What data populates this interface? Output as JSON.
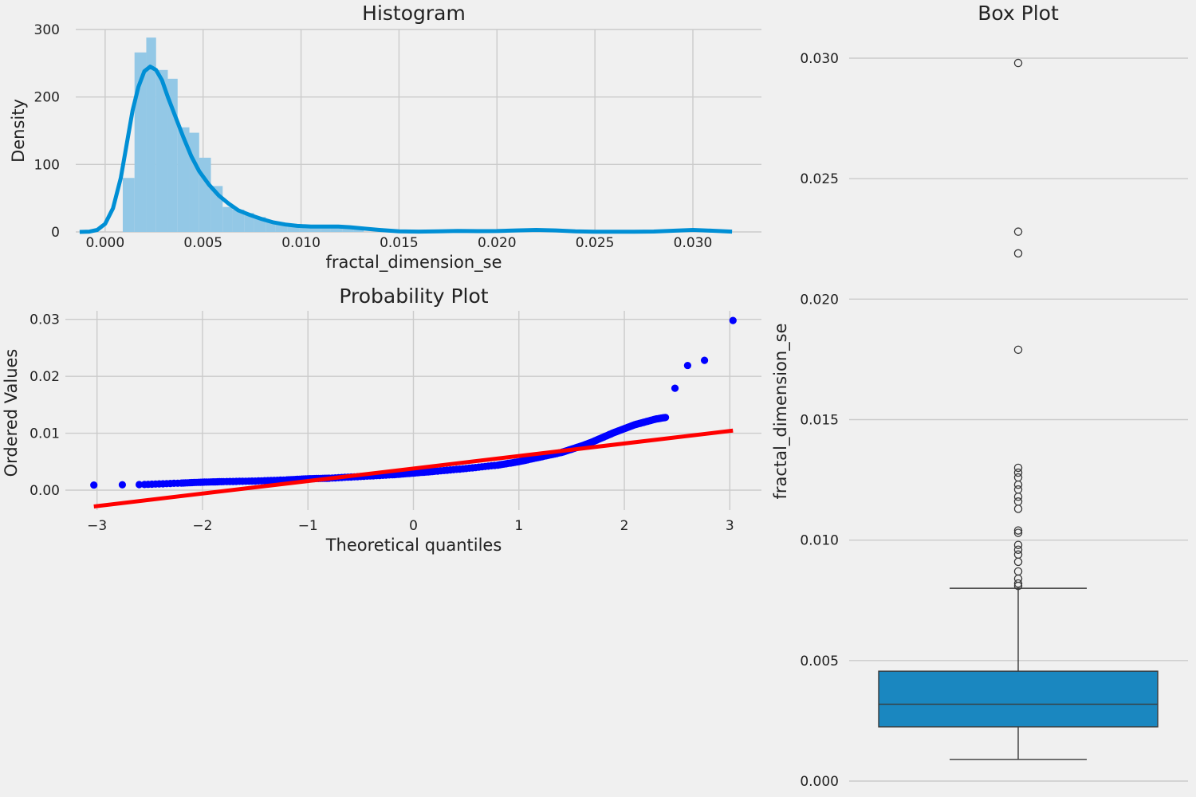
{
  "chart_data": [
    {
      "type": "bar",
      "title": "Histogram",
      "xlabel": "fractal_dimension_se",
      "ylabel": "Density",
      "xlim": [
        -0.0015,
        0.0335
      ],
      "ylim": [
        0,
        300
      ],
      "xticks": [
        0.0,
        0.005,
        0.01,
        0.015,
        0.02,
        0.025,
        0.03
      ],
      "xtick_labels": [
        "0.000",
        "0.005",
        "0.010",
        "0.015",
        "0.020",
        "0.025",
        "0.030"
      ],
      "yticks": [
        0,
        100,
        200,
        300
      ],
      "ytick_labels": [
        "0",
        "100",
        "200",
        "300"
      ],
      "grid": true,
      "bar_color": "#93c8e6",
      "kde_color": "#008fd5",
      "bins": [
        {
          "x0": 0.0009,
          "x1": 0.0015,
          "density": 80
        },
        {
          "x0": 0.0015,
          "x1": 0.0021,
          "density": 266
        },
        {
          "x0": 0.0021,
          "x1": 0.0026,
          "density": 288
        },
        {
          "x0": 0.0026,
          "x1": 0.0032,
          "density": 240
        },
        {
          "x0": 0.0032,
          "x1": 0.0037,
          "density": 227
        },
        {
          "x0": 0.0037,
          "x1": 0.0043,
          "density": 155
        },
        {
          "x0": 0.0043,
          "x1": 0.0048,
          "density": 147
        },
        {
          "x0": 0.0048,
          "x1": 0.0054,
          "density": 110
        },
        {
          "x0": 0.0054,
          "x1": 0.006,
          "density": 68
        },
        {
          "x0": 0.006,
          "x1": 0.0065,
          "density": 37
        },
        {
          "x0": 0.0065,
          "x1": 0.0071,
          "density": 33
        },
        {
          "x0": 0.0071,
          "x1": 0.0076,
          "density": 28
        },
        {
          "x0": 0.0076,
          "x1": 0.0082,
          "density": 22
        },
        {
          "x0": 0.0082,
          "x1": 0.0087,
          "density": 15
        },
        {
          "x0": 0.0087,
          "x1": 0.0093,
          "density": 12
        },
        {
          "x0": 0.0093,
          "x1": 0.0099,
          "density": 10
        },
        {
          "x0": 0.0099,
          "x1": 0.0104,
          "density": 8
        },
        {
          "x0": 0.0104,
          "x1": 0.011,
          "density": 7
        },
        {
          "x0": 0.011,
          "x1": 0.0115,
          "density": 8
        },
        {
          "x0": 0.0115,
          "x1": 0.0121,
          "density": 9
        },
        {
          "x0": 0.0121,
          "x1": 0.0127,
          "density": 9
        },
        {
          "x0": 0.0127,
          "x1": 0.0132,
          "density": 4
        },
        {
          "x0": 0.0177,
          "x1": 0.0182,
          "density": 2
        },
        {
          "x0": 0.0216,
          "x1": 0.0221,
          "density": 2
        },
        {
          "x0": 0.0227,
          "x1": 0.0232,
          "density": 2
        },
        {
          "x0": 0.0294,
          "x1": 0.03,
          "density": 2
        }
      ],
      "kde": {
        "x": [
          -0.0013,
          -0.0008,
          -0.0004,
          0.0,
          0.0004,
          0.0008,
          0.0011,
          0.0014,
          0.0017,
          0.002,
          0.0023,
          0.0026,
          0.0029,
          0.0032,
          0.0036,
          0.004,
          0.0044,
          0.0048,
          0.0053,
          0.0058,
          0.0063,
          0.0068,
          0.0074,
          0.008,
          0.0086,
          0.0092,
          0.0098,
          0.0105,
          0.0112,
          0.0119,
          0.0125,
          0.0132,
          0.014,
          0.015,
          0.016,
          0.017,
          0.018,
          0.019,
          0.02,
          0.021,
          0.022,
          0.023,
          0.024,
          0.025,
          0.026,
          0.027,
          0.028,
          0.029,
          0.03,
          0.031,
          0.032
        ],
        "y": [
          0,
          0.5,
          3,
          12,
          35,
          80,
          130,
          180,
          215,
          238,
          245,
          240,
          225,
          200,
          170,
          140,
          112,
          90,
          70,
          54,
          42,
          32,
          25,
          19,
          14,
          11,
          9,
          8,
          8,
          8,
          7,
          5,
          3,
          1,
          0.5,
          0.8,
          1.5,
          1.2,
          1.3,
          2.2,
          3,
          2.2,
          1,
          0.4,
          0.3,
          0.3,
          0.6,
          1.8,
          3,
          1.8,
          0.5
        ]
      }
    },
    {
      "type": "scatter",
      "title": "Probability Plot",
      "xlabel": "Theoretical quantiles",
      "ylabel": "Ordered Values",
      "xlim": [
        -3.3,
        3.3
      ],
      "ylim": [
        -0.0035,
        0.0315
      ],
      "xticks": [
        -3,
        -2,
        -1,
        0,
        1,
        2,
        3
      ],
      "xtick_labels": [
        "−3",
        "−2",
        "−1",
        "0",
        "1",
        "2",
        "3"
      ],
      "yticks": [
        0.0,
        0.01,
        0.02,
        0.03
      ],
      "ytick_labels": [
        "0.00",
        "0.01",
        "0.02",
        "0.03"
      ],
      "grid": true,
      "point_color": "#0000ff",
      "line_color": "#ff0000",
      "fit_line": {
        "slope": 0.0022,
        "intercept": 0.0038,
        "x_range": [
          -3.03,
          3.03
        ]
      },
      "quantile_curve": {
        "q": [
          -2.55,
          -2.2,
          -2.0,
          -1.8,
          -1.5,
          -1.2,
          -1.0,
          -0.8,
          -0.5,
          -0.2,
          0.0,
          0.2,
          0.5,
          0.8,
          1.0,
          1.2,
          1.4,
          1.5,
          1.6,
          1.7,
          1.8,
          1.9,
          2.0,
          2.1,
          2.2,
          2.3,
          2.4
        ],
        "v": [
          0.001,
          0.00125,
          0.0014,
          0.0015,
          0.0016,
          0.0018,
          0.002,
          0.0021,
          0.0024,
          0.0027,
          0.003,
          0.0033,
          0.0038,
          0.0044,
          0.005,
          0.0058,
          0.0066,
          0.0072,
          0.0078,
          0.0085,
          0.0093,
          0.0101,
          0.0108,
          0.0115,
          0.012,
          0.0125,
          0.0128
        ]
      },
      "outlier_points": [
        {
          "q": -3.03,
          "v": 0.0009
        },
        {
          "q": -2.76,
          "v": 0.00095
        },
        {
          "q": -2.6,
          "v": 0.00098
        },
        {
          "q": 2.48,
          "v": 0.0179
        },
        {
          "q": 2.6,
          "v": 0.0219
        },
        {
          "q": 2.76,
          "v": 0.0228
        },
        {
          "q": 3.03,
          "v": 0.0298
        }
      ]
    },
    {
      "type": "box",
      "title": "Box Plot",
      "ylabel": "fractal_dimension_se",
      "ylim": [
        -0.0002,
        0.0312
      ],
      "yticks": [
        0.0,
        0.005,
        0.01,
        0.015,
        0.02,
        0.025,
        0.03
      ],
      "ytick_labels": [
        "0.000",
        "0.005",
        "0.010",
        "0.015",
        "0.020",
        "0.025",
        "0.030"
      ],
      "grid": true,
      "box_color": "#1a87c0",
      "box": {
        "whisker_low": 0.0009,
        "q1": 0.00225,
        "median": 0.00319,
        "q3": 0.00456,
        "whisker_high": 0.008
      },
      "outliers": [
        0.0298,
        0.0228,
        0.0219,
        0.0179,
        0.013,
        0.0128,
        0.0126,
        0.0123,
        0.0121,
        0.0118,
        0.0116,
        0.0113,
        0.0104,
        0.0103,
        0.0098,
        0.0096,
        0.0094,
        0.0091,
        0.0087,
        0.0084,
        0.0082,
        0.0081
      ]
    }
  ]
}
